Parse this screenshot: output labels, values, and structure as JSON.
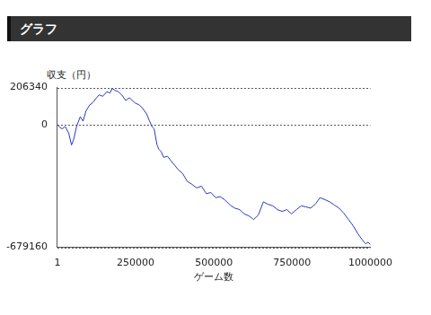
{
  "chart_data": {
    "type": "line",
    "title": "グラフ",
    "ylabel": "収支（円）",
    "xlabel": "ゲーム数",
    "color": "#2a3bbd",
    "grid": true,
    "xlim": [
      1,
      1000000
    ],
    "xticks": [
      1,
      250000,
      500000,
      750000,
      1000000
    ],
    "ylim": [
      -679160,
      206340
    ],
    "yticks": [
      -679160,
      0,
      206340
    ],
    "x": [
      1,
      8000,
      15000,
      25000,
      36000,
      45000,
      52000,
      61000,
      73000,
      82000,
      91000,
      103000,
      112000,
      125000,
      133000,
      145000,
      158000,
      168000,
      175000,
      185000,
      194000,
      206000,
      218000,
      230000,
      248000,
      262000,
      273000,
      285000,
      294000,
      302000,
      309000,
      318000,
      324000,
      332000,
      339000,
      352000,
      364000,
      375000,
      385000,
      400000,
      415000,
      430000,
      445000,
      460000,
      476000,
      490000,
      506000,
      520000,
      536000,
      552000,
      567000,
      582000,
      597000,
      612000,
      627000,
      642000,
      658000,
      672000,
      688000,
      703000,
      718000,
      733000,
      748000,
      764000,
      779000,
      794000,
      809000,
      824000,
      839000,
      855000,
      870000,
      885000,
      900000,
      915000,
      930000,
      945000,
      961000,
      975000,
      985000,
      993000,
      1000000
    ],
    "values": [
      0,
      -15000,
      -22000,
      -10000,
      -45000,
      -112000,
      -80000,
      -10000,
      45000,
      20000,
      76000,
      110000,
      121000,
      150000,
      166000,
      158000,
      184000,
      176000,
      202000,
      190000,
      184000,
      165000,
      135000,
      150000,
      121000,
      110000,
      90000,
      60000,
      22000,
      -10000,
      -22000,
      -110000,
      -135000,
      -150000,
      -180000,
      -175000,
      -202000,
      -225000,
      -247000,
      -270000,
      -314000,
      -330000,
      -350000,
      -340000,
      -382000,
      -375000,
      -404000,
      -398000,
      -418000,
      -445000,
      -462000,
      -470000,
      -494000,
      -505000,
      -525000,
      -500000,
      -427000,
      -440000,
      -449000,
      -470000,
      -480000,
      -470000,
      -494000,
      -470000,
      -449000,
      -455000,
      -462000,
      -440000,
      -404000,
      -415000,
      -427000,
      -445000,
      -462000,
      -490000,
      -525000,
      -560000,
      -606000,
      -640000,
      -660000,
      -650000,
      -665000
    ]
  }
}
